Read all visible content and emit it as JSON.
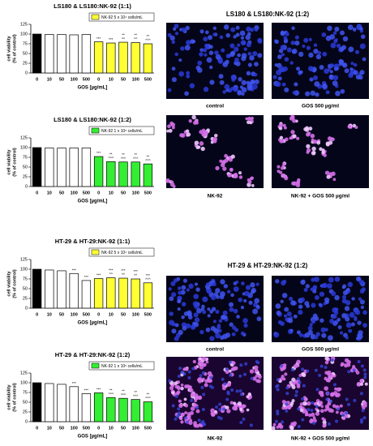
{
  "chart_data": [
    {
      "type": "bar",
      "title": "LS180 & LS180:NK-92 (1:1)",
      "legend": {
        "text": "NK-92 5 x 10⁴ cells/mL",
        "color": "#ffff33"
      },
      "categories": [
        "0",
        "10",
        "50",
        "100",
        "500",
        "0",
        "10",
        "50",
        "100",
        "500"
      ],
      "values": [
        100,
        99,
        99,
        98,
        99,
        80,
        77,
        79,
        78,
        75
      ],
      "colors": [
        "#000000",
        "#ffffff",
        "#ffffff",
        "#ffffff",
        "#ffffff",
        "#ffff33",
        "#ffff33",
        "#ffff33",
        "#ffff33",
        "#ffff33"
      ],
      "annotations": [
        null,
        null,
        null,
        null,
        null,
        [
          "***"
        ],
        [
          "***"
        ],
        [
          "**",
          "^^"
        ],
        [
          "**",
          "^^"
        ],
        [
          "**",
          "^^^"
        ]
      ],
      "xlabel": "GOS [µg/mL]",
      "ylabel": [
        "cell viability",
        "(% of control)"
      ],
      "ylim": [
        0,
        125
      ],
      "yticks": [
        0,
        25,
        50,
        75,
        100,
        125
      ]
    },
    {
      "type": "bar",
      "title": "LS180 & LS180:NK-92 (1:2)",
      "legend": {
        "text": "NK-92 1 x 10⁵ cells/mL",
        "color": "#33ee33"
      },
      "categories": [
        "0",
        "10",
        "50",
        "100",
        "500",
        "0",
        "10",
        "50",
        "100",
        "500"
      ],
      "values": [
        100,
        99,
        99,
        99,
        99,
        77,
        64,
        63,
        63,
        58
      ],
      "colors": [
        "#000000",
        "#ffffff",
        "#ffffff",
        "#ffffff",
        "#ffffff",
        "#33ee33",
        "#33ee33",
        "#33ee33",
        "#33ee33",
        "#33ee33"
      ],
      "annotations": [
        null,
        null,
        null,
        null,
        null,
        [
          "***"
        ],
        [
          "**",
          "^^^"
        ],
        [
          "**",
          "^^^"
        ],
        [
          "**",
          "^^^"
        ],
        [
          "**",
          "^^^"
        ]
      ],
      "xlabel": "GOS [µg/mL]",
      "ylabel": [
        "cell viability",
        "(% of control)"
      ],
      "ylim": [
        0,
        125
      ],
      "yticks": [
        0,
        25,
        50,
        75,
        100,
        125
      ]
    },
    {
      "type": "bar",
      "title": "HT-29 & HT-29:NK-92 (1:1)",
      "legend": {
        "text": "NK-92 5 x 10⁴ cells/mL",
        "color": "#ffff33"
      },
      "categories": [
        "0",
        "10",
        "50",
        "100",
        "500",
        "0",
        "10",
        "50",
        "100",
        "500"
      ],
      "values": [
        100,
        98,
        96,
        89,
        71,
        76,
        78,
        77,
        75,
        65
      ],
      "colors": [
        "#000000",
        "#ffffff",
        "#ffffff",
        "#ffffff",
        "#ffffff",
        "#ffff33",
        "#ffff33",
        "#ffff33",
        "#ffff33",
        "#ffff33"
      ],
      "annotations": [
        null,
        null,
        null,
        [
          "***"
        ],
        [
          "***"
        ],
        [
          "***"
        ],
        [
          "***",
          "^^"
        ],
        [
          "***",
          "^^"
        ],
        [
          "***",
          "^^"
        ],
        [
          "***",
          "^^^"
        ]
      ],
      "xlabel": "GOS [µg/mL]",
      "ylabel": [
        "cell viability",
        "(% of control)"
      ],
      "ylim": [
        0,
        125
      ],
      "yticks": [
        0,
        25,
        50,
        75,
        100,
        125
      ]
    },
    {
      "type": "bar",
      "title": "HT-29 & HT-29:NK-92 (1:2)",
      "legend": {
        "text": "NK-92 1 x 10⁵ cells/mL",
        "color": "#33ee33"
      },
      "categories": [
        "0",
        "10",
        "50",
        "100",
        "500",
        "0",
        "10",
        "50",
        "100",
        "500"
      ],
      "values": [
        100,
        98,
        96,
        90,
        72,
        74,
        62,
        60,
        57,
        51
      ],
      "colors": [
        "#000000",
        "#ffffff",
        "#ffffff",
        "#ffffff",
        "#ffffff",
        "#33ee33",
        "#33ee33",
        "#33ee33",
        "#33ee33",
        "#33ee33"
      ],
      "annotations": [
        null,
        null,
        null,
        [
          "***"
        ],
        [
          "***"
        ],
        [
          "***"
        ],
        [
          "**",
          "^^^"
        ],
        [
          "**",
          "^^^"
        ],
        [
          "**",
          "^^^"
        ],
        [
          "**",
          "^^^"
        ]
      ],
      "xlabel": "GOS [µg/mL]",
      "ylabel": [
        "cell viability",
        "(% of control)"
      ],
      "ylim": [
        0,
        125
      ],
      "yticks": [
        0,
        25,
        50,
        75,
        100,
        125
      ]
    }
  ],
  "image_panels": [
    {
      "title": "LS180 & LS180:NK-92 (1:2)",
      "images": [
        {
          "label": "control"
        },
        {
          "label": "GOS 500 µg/ml"
        },
        {
          "label": "NK-92"
        },
        {
          "label": "NK-92 + GOS 500 µg/ml"
        }
      ]
    },
    {
      "title": "HT-29 & HT-29:NK-92 (1:2)",
      "images": [
        {
          "label": "control"
        },
        {
          "label": "GOS 500 µg/ml"
        },
        {
          "label": "NK-92"
        },
        {
          "label": "NK-92 + GOS 500 µg/ml"
        }
      ]
    }
  ]
}
